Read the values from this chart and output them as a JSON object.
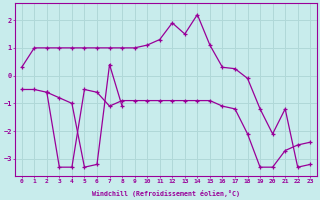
{
  "xlabel": "Windchill (Refroidissement éolien,°C)",
  "background_color": "#c8ecec",
  "grid_color": "#b0d8d8",
  "line_color": "#990099",
  "xlim": [
    -0.5,
    23.5
  ],
  "ylim": [
    -3.6,
    2.6
  ],
  "yticks": [
    -3,
    -2,
    -1,
    0,
    1,
    2
  ],
  "xticks": [
    0,
    1,
    2,
    3,
    4,
    5,
    6,
    7,
    8,
    9,
    10,
    11,
    12,
    13,
    14,
    15,
    16,
    17,
    18,
    19,
    20,
    21,
    22,
    23
  ],
  "series": [
    {
      "x": [
        0,
        1,
        2,
        3,
        4,
        5,
        6,
        7,
        8,
        9,
        10,
        11,
        12,
        13,
        14,
        15,
        16,
        17,
        18,
        19,
        20,
        21,
        22,
        23
      ],
      "y": [
        0.3,
        1.0,
        1.0,
        1.0,
        1.0,
        1.0,
        1.0,
        1.0,
        1.0,
        1.0,
        1.1,
        1.3,
        1.9,
        1.5,
        2.2,
        1.1,
        0.3,
        0.25,
        -0.1,
        -1.2,
        -2.1,
        -1.2,
        -3.3,
        -3.2
      ]
    },
    {
      "x": [
        0,
        1,
        2,
        3,
        4,
        5,
        6,
        7,
        8,
        9,
        10,
        11,
        12,
        13,
        14,
        15,
        16,
        17,
        18,
        19,
        20,
        21,
        22,
        23
      ],
      "y": [
        -0.5,
        -0.5,
        -0.6,
        -3.3,
        -3.3,
        -0.5,
        -0.6,
        -1.1,
        -0.9,
        -0.9,
        -0.9,
        -0.9,
        -0.9,
        -0.9,
        -0.9,
        -0.9,
        -1.1,
        -1.2,
        -2.1,
        -3.3,
        -3.3,
        -2.7,
        -2.5,
        -2.4
      ]
    },
    {
      "x": [
        2,
        3,
        4,
        5,
        6,
        7,
        8
      ],
      "y": [
        -0.6,
        -0.8,
        -1.0,
        -3.3,
        -3.2,
        0.4,
        -1.1
      ]
    }
  ]
}
